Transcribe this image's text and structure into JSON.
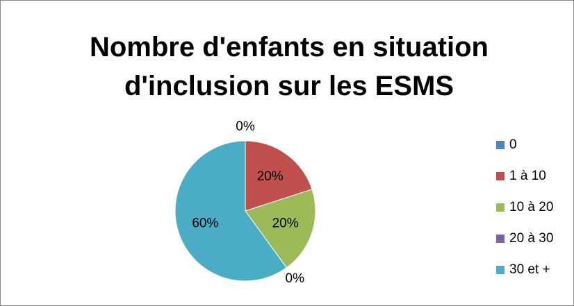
{
  "chart_data": {
    "type": "pie",
    "title": "Nombre d'enfants en situation d'inclusion sur les ESMS",
    "categories": [
      "0",
      "1 à 10",
      "10 à 20",
      "20 à 30",
      "30 et +"
    ],
    "values": [
      0,
      20,
      20,
      0,
      60
    ],
    "value_labels": [
      "0%",
      "20%",
      "20%",
      "0%",
      "60%"
    ],
    "colors": [
      "#4f81bd",
      "#c0504d",
      "#9bbb59",
      "#8064a2",
      "#4bacc6"
    ],
    "legend": "right"
  }
}
